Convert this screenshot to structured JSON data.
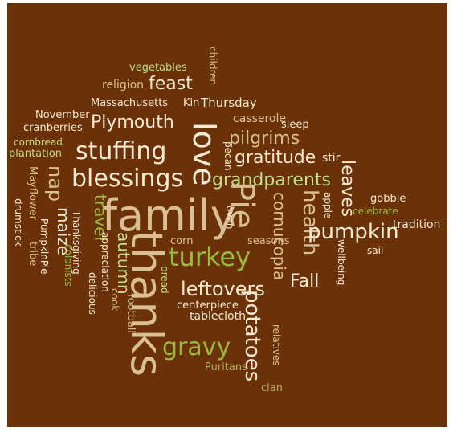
{
  "colors": {
    "background": "#6b3109",
    "cream": "#f2ead3",
    "tan": "#d9bf93",
    "light_green": "#c3dd8a",
    "green": "#98bb3c",
    "olive": "#b2ad62"
  },
  "words": {
    "vegetables": "vegetables",
    "children": "children",
    "religion": "religion",
    "feast": "feast",
    "massachusetts": "Massachusetts",
    "kin": "Kin",
    "thursday": "Thursday",
    "november": "November",
    "plymouth": "Plymouth",
    "casserole": "casserole",
    "sleep": "sleep",
    "cranberries": "cranberries",
    "love": "love",
    "pilgrims": "pilgrims",
    "cornbread": "cornbread",
    "plantation": "plantation",
    "stuffing": "stuffing",
    "pecan": "pecan",
    "gratitude": "gratitude",
    "stir": "stir",
    "mayflower": "Mayflower",
    "nap": "nap",
    "blessings": "blessings",
    "grandparents": "grandparents",
    "leaves": "leaves",
    "drumstick": "drumstick",
    "travel": "travel",
    "pie": "Pie",
    "cornucopia": "cornucopia",
    "apple": "apple",
    "gobble": "gobble",
    "celebrate": "celebrate",
    "maize": "maize",
    "family": "family",
    "health": "health",
    "tradition": "tradition",
    "thanksgiving": "Thanksgiving",
    "oven": "oven",
    "pumpkin": "pumpkin",
    "pumpkinpie": "PumpkinPie",
    "autumn": "autumn",
    "corn": "corn",
    "seasons": "seasons",
    "sail": "sail",
    "tribe": "tribe",
    "colonists": "colonists",
    "appreciation": "appreciation",
    "thanks": "thanks",
    "turkey": "turkey",
    "wellbeing": "wellbeing",
    "bread": "bread",
    "fall": "Fall",
    "delicious": "delicious",
    "cook": "cook",
    "football": "football",
    "leftovers": "leftovers",
    "centerpiece": "centerpiece",
    "potatoes": "potatoes",
    "tablecloth": "tablecloth",
    "relatives": "relatives",
    "gravy": "gravy",
    "puritans": "Puritans",
    "clan": "clan"
  }
}
